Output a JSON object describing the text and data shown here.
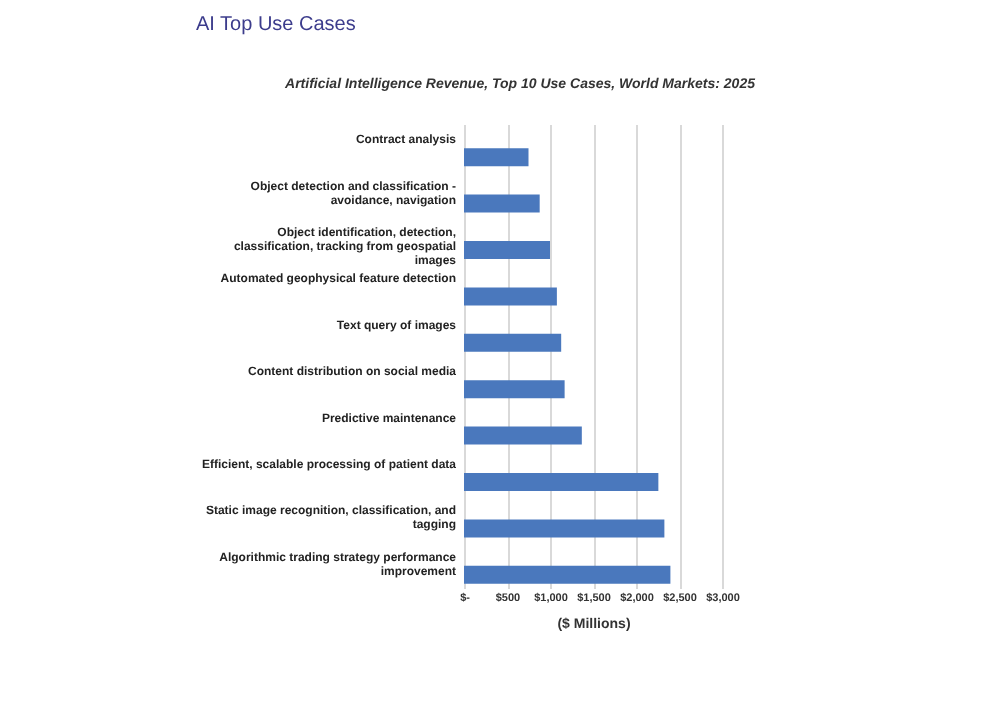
{
  "chart_data": {
    "type": "bar",
    "orientation": "horizontal",
    "title": "AI Top Use Cases",
    "subtitle": "Artificial Intelligence Revenue, Top 10 Use Cases, World Markets: 2025",
    "xlabel": "($ Millions)",
    "categories": [
      "Contract analysis",
      "Object detection and classification - avoidance, navigation",
      "Object identification, detection, classification, tracking from geospatial images",
      "Automated geophysical feature detection",
      "Text query of images",
      "Content distribution on social media",
      "Predictive maintenance",
      "Efficient, scalable processing of patient data",
      "Static image recognition, classification, and tagging",
      "Algorithmic trading strategy performance improvement"
    ],
    "values": [
      750,
      880,
      1000,
      1080,
      1130,
      1170,
      1370,
      2260,
      2330,
      2400
    ],
    "color": "#4a78bd",
    "xlim": [
      0,
      3000
    ],
    "xticks": [
      {
        "value": 0,
        "label": "$-"
      },
      {
        "value": 500,
        "label": "$500"
      },
      {
        "value": 1000,
        "label": "$1,000"
      },
      {
        "value": 1500,
        "label": "$1,500"
      },
      {
        "value": 2000,
        "label": "$2,000"
      },
      {
        "value": 2500,
        "label": "$2,500"
      },
      {
        "value": 3000,
        "label": "$3,000"
      }
    ],
    "grid": "x"
  }
}
